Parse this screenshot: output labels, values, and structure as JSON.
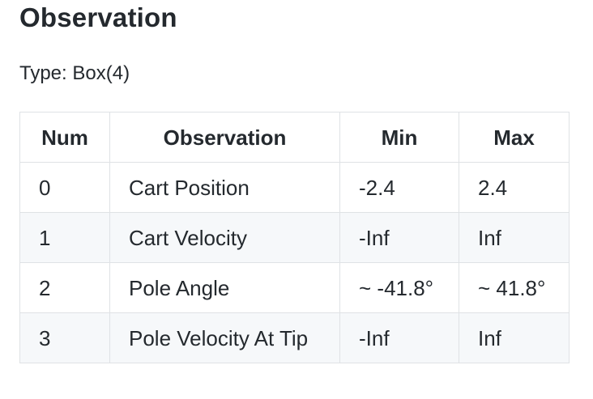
{
  "heading": "Observation",
  "type_line": "Type: Box(4)",
  "table": {
    "headers": [
      "Num",
      "Observation",
      "Min",
      "Max"
    ],
    "rows": [
      [
        "0",
        "Cart Position",
        "-2.4",
        "2.4"
      ],
      [
        "1",
        "Cart Velocity",
        "-Inf",
        "Inf"
      ],
      [
        "2",
        "Pole Angle",
        "~ -41.8°",
        "~ 41.8°"
      ],
      [
        "3",
        "Pole Velocity At Tip",
        "-Inf",
        "Inf"
      ]
    ]
  }
}
